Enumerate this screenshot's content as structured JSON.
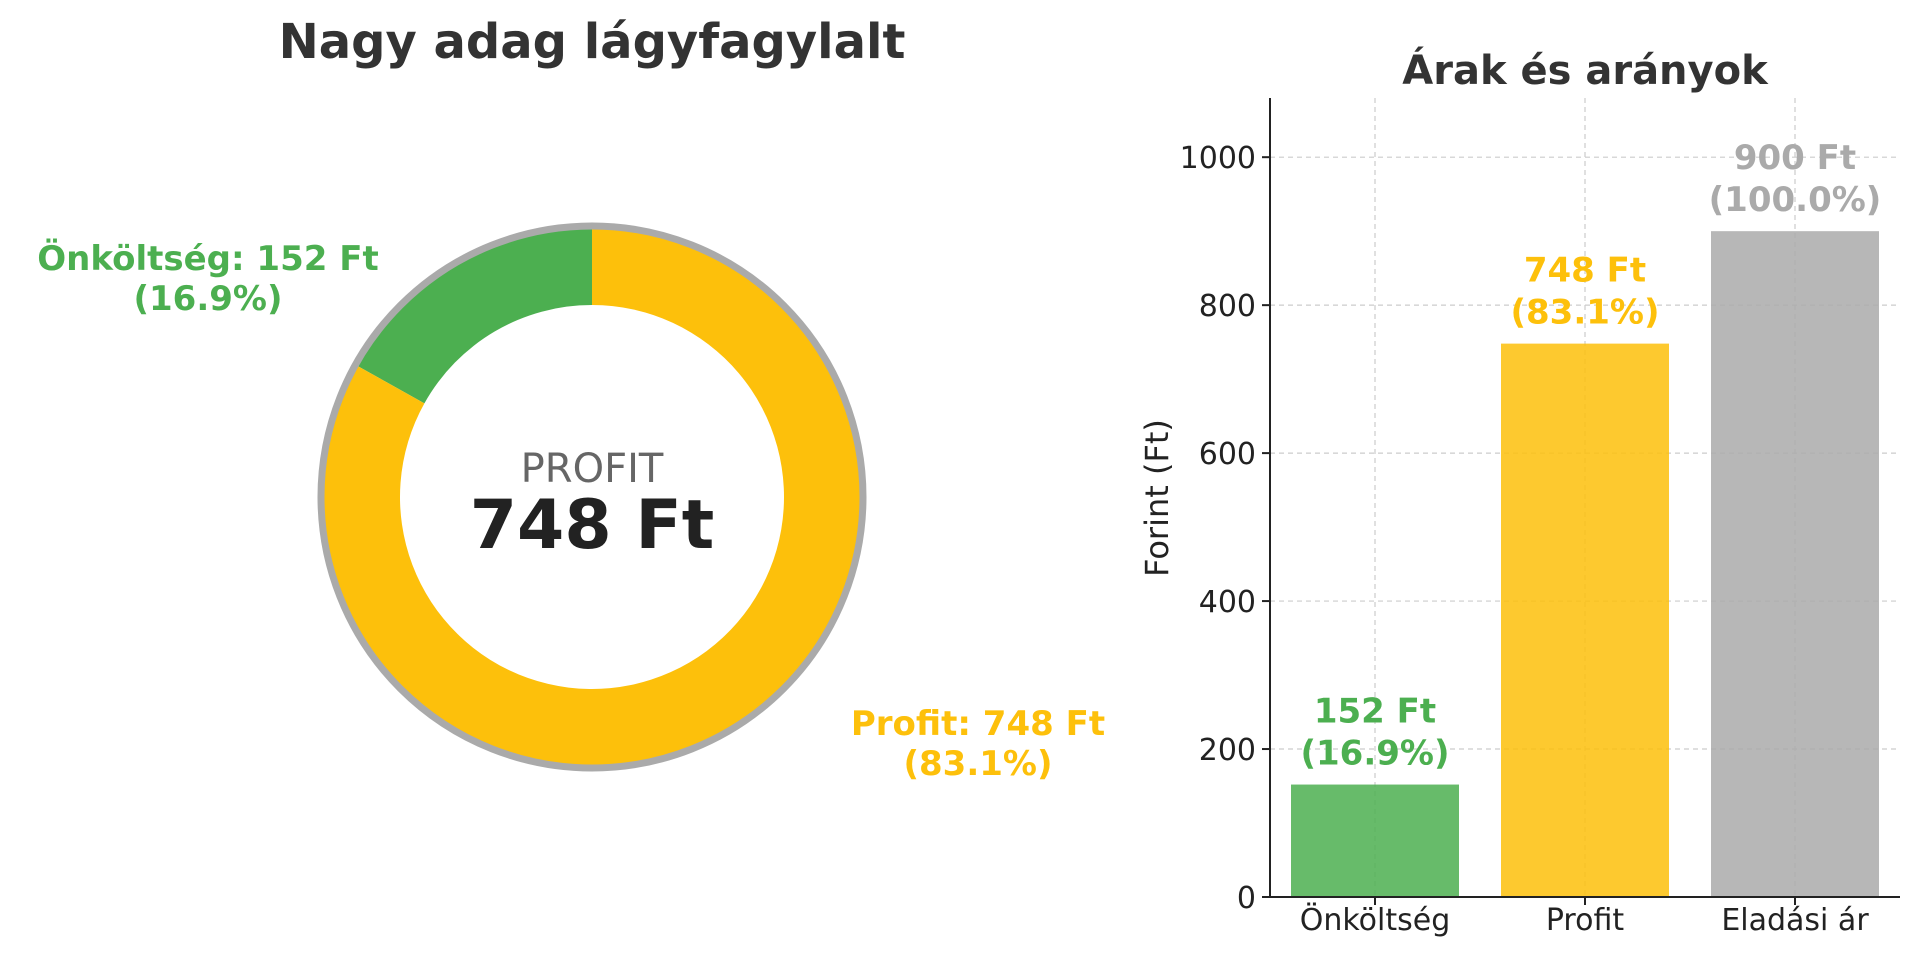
{
  "colors": {
    "cost": "#4caf50",
    "profit": "#fdc00b",
    "price": "#aaaaaa",
    "title": "#333333",
    "center_label": "#666666",
    "center_value": "#222222",
    "axis": "#222222",
    "grid": "#cccccc"
  },
  "chart_data": [
    {
      "type": "pie",
      "variant": "donut",
      "title": "Nagy adag lágyfagylalt",
      "center_label": "PROFIT",
      "center_value": "748 Ft",
      "slices": [
        {
          "name": "Önköltség",
          "value": 152,
          "label": "Önköltség: 152 Ft",
          "pct_label": "(16.9%)",
          "color": "#4caf50"
        },
        {
          "name": "Profit",
          "value": 748,
          "label": "Profit: 748 Ft",
          "pct_label": "(83.1%)",
          "color": "#fdc00b"
        }
      ],
      "total": 900,
      "ring_outline_color": "#aaaaaa"
    },
    {
      "type": "bar",
      "title": "Árak és arányok",
      "categories": [
        "Önköltség",
        "Profit",
        "Eladási ár"
      ],
      "values": [
        152,
        748,
        900
      ],
      "colors": [
        "#4caf50",
        "#fdc00b",
        "#aaaaaa"
      ],
      "value_labels": [
        "152 Ft",
        "748 Ft",
        "900 Ft"
      ],
      "pct_labels": [
        "(16.9%)",
        "(83.1%)",
        "(100.0%)"
      ],
      "ylabel": "Forint (Ft)",
      "ylim": [
        0,
        1080
      ],
      "yticks": [
        0,
        200,
        400,
        600,
        800,
        1000
      ],
      "grid": true
    }
  ]
}
